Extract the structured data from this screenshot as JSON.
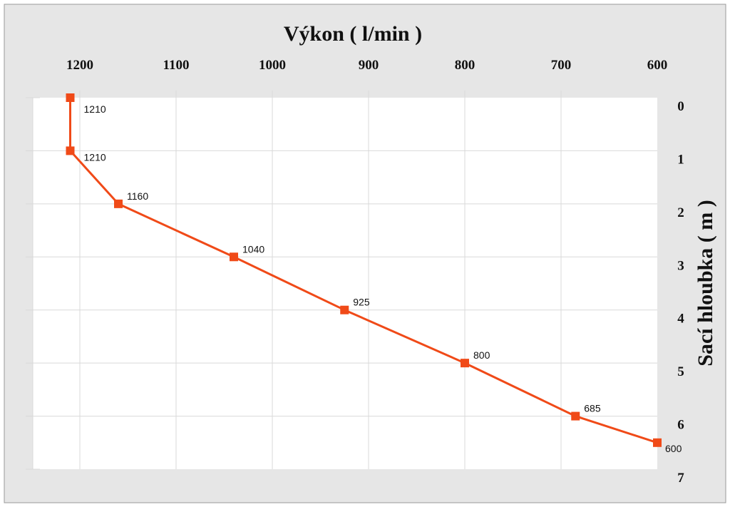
{
  "chart_data": {
    "type": "line",
    "title": "Výkon ( l/min )",
    "xlabel": "Výkon ( l/min )",
    "ylabel": "Sací hloubka ( m )",
    "x_axis_position": "top",
    "x_reversed": true,
    "y_axis_position": "right",
    "y_reversed": true,
    "xlim": [
      600,
      1250
    ],
    "ylim": [
      0,
      7
    ],
    "x_ticks": [
      1200,
      1100,
      1000,
      900,
      800,
      700,
      600
    ],
    "y_ticks": [
      0,
      1,
      2,
      3,
      4,
      5,
      6,
      7
    ],
    "grid": true,
    "legend": "none",
    "series": [
      {
        "x": [
          1210,
          1210,
          1160,
          1040,
          925,
          800,
          685,
          600
        ],
        "y": [
          0,
          1,
          2,
          3,
          4,
          5,
          6,
          6.5
        ],
        "labels": [
          "1210",
          "1210",
          "1160",
          "1040",
          "925",
          "800",
          "685",
          "600"
        ]
      }
    ],
    "colors": {
      "line": "#f04a18",
      "marker": "#f04a18",
      "frame_background": "#e6e6e6",
      "plot_background": "#ffffff",
      "grid": "#d9d9d9"
    }
  }
}
